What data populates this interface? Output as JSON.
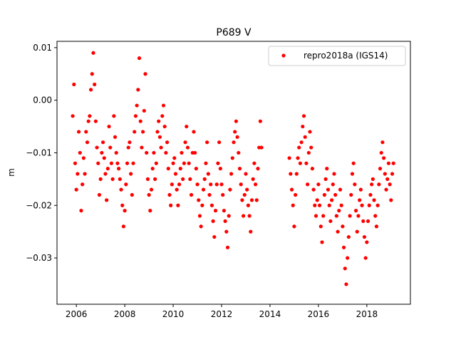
{
  "chart_data": {
    "type": "scatter",
    "title": "P689 V",
    "xlabel": "",
    "ylabel": "m",
    "xlim": [
      2005.2,
      2019.8
    ],
    "ylim": [
      -0.0388,
      0.0112
    ],
    "x_ticks": [
      2006,
      2008,
      2010,
      2012,
      2014,
      2016,
      2018
    ],
    "x_tick_labels": [
      "2006",
      "2008",
      "2010",
      "2012",
      "2014",
      "2016",
      "2018"
    ],
    "y_ticks": [
      0.01,
      0.0,
      -0.01,
      -0.02,
      -0.03
    ],
    "y_tick_labels": [
      "0.01",
      "0.00",
      "−0.01",
      "−0.02",
      "−0.03"
    ],
    "grid": false,
    "legend_position": "top-right",
    "marker_color": "#ff0000",
    "series": [
      {
        "name": "repro2018a (IGS14)",
        "marker": "circle",
        "color": "#ff0000",
        "x": [
          2005.85,
          2005.9,
          2005.95,
          2006.0,
          2006.05,
          2006.1,
          2006.15,
          2006.2,
          2006.25,
          2006.3,
          2006.35,
          2006.4,
          2006.45,
          2006.5,
          2006.55,
          2006.6,
          2006.65,
          2006.7,
          2006.75,
          2006.8,
          2006.85,
          2006.9,
          2006.95,
          2007.0,
          2007.05,
          2007.1,
          2007.15,
          2007.2,
          2007.25,
          2007.3,
          2007.35,
          2007.4,
          2007.45,
          2007.5,
          2007.55,
          2007.6,
          2007.65,
          2007.7,
          2007.75,
          2007.8,
          2007.85,
          2007.9,
          2007.95,
          2008.0,
          2008.05,
          2008.1,
          2008.15,
          2008.2,
          2008.25,
          2008.3,
          2008.35,
          2008.4,
          2008.45,
          2008.5,
          2008.55,
          2008.6,
          2008.65,
          2008.7,
          2008.75,
          2008.8,
          2008.85,
          2008.9,
          2008.95,
          2009.0,
          2009.05,
          2009.1,
          2009.15,
          2009.2,
          2009.25,
          2009.3,
          2009.35,
          2009.4,
          2009.45,
          2009.5,
          2009.55,
          2009.6,
          2009.65,
          2009.7,
          2009.75,
          2009.8,
          2009.85,
          2009.9,
          2009.95,
          2010.0,
          2010.05,
          2010.1,
          2010.15,
          2010.2,
          2010.25,
          2010.3,
          2010.35,
          2010.4,
          2010.45,
          2010.5,
          2010.55,
          2010.6,
          2010.65,
          2010.7,
          2010.75,
          2010.8,
          2010.85,
          2010.9,
          2010.95,
          2011.0,
          2011.05,
          2011.1,
          2011.15,
          2011.2,
          2011.25,
          2011.3,
          2011.35,
          2011.4,
          2011.45,
          2011.5,
          2011.55,
          2011.6,
          2011.65,
          2011.7,
          2011.75,
          2011.8,
          2011.85,
          2011.9,
          2011.95,
          2012.0,
          2012.05,
          2012.1,
          2012.15,
          2012.2,
          2012.25,
          2012.3,
          2012.35,
          2012.4,
          2012.45,
          2012.5,
          2012.55,
          2012.6,
          2012.65,
          2012.7,
          2012.75,
          2012.8,
          2012.85,
          2012.9,
          2012.95,
          2013.0,
          2013.05,
          2013.1,
          2013.15,
          2013.2,
          2013.25,
          2013.3,
          2013.35,
          2013.4,
          2013.45,
          2013.5,
          2013.55,
          2013.6,
          2013.65,
          2014.8,
          2014.85,
          2014.9,
          2014.95,
          2015.0,
          2015.05,
          2015.1,
          2015.15,
          2015.2,
          2015.25,
          2015.3,
          2015.35,
          2015.4,
          2015.45,
          2015.5,
          2015.55,
          2015.6,
          2015.65,
          2015.7,
          2015.75,
          2015.8,
          2015.85,
          2015.9,
          2015.95,
          2016.0,
          2016.05,
          2016.1,
          2016.15,
          2016.2,
          2016.25,
          2016.3,
          2016.35,
          2016.4,
          2016.45,
          2016.5,
          2016.55,
          2016.6,
          2016.65,
          2016.7,
          2016.75,
          2016.8,
          2016.85,
          2016.9,
          2016.95,
          2017.0,
          2017.05,
          2017.1,
          2017.15,
          2017.2,
          2017.25,
          2017.3,
          2017.35,
          2017.4,
          2017.45,
          2017.5,
          2017.55,
          2017.6,
          2017.65,
          2017.7,
          2017.75,
          2017.8,
          2017.85,
          2017.9,
          2017.95,
          2018.0,
          2018.05,
          2018.1,
          2018.15,
          2018.2,
          2018.25,
          2018.3,
          2018.35,
          2018.4,
          2018.45,
          2018.5,
          2018.55,
          2018.6,
          2018.65,
          2018.7,
          2018.75,
          2018.8,
          2018.85,
          2018.9,
          2018.95,
          2019.0,
          2019.05,
          2019.1
        ],
        "y": [
          -0.003,
          0.003,
          -0.012,
          -0.017,
          -0.014,
          -0.006,
          -0.01,
          -0.021,
          -0.016,
          -0.011,
          -0.014,
          -0.006,
          -0.008,
          -0.004,
          -0.003,
          0.002,
          0.005,
          0.009,
          0.003,
          -0.004,
          -0.009,
          -0.012,
          -0.018,
          -0.015,
          -0.01,
          -0.008,
          -0.011,
          -0.014,
          -0.019,
          -0.013,
          -0.005,
          -0.009,
          -0.012,
          -0.015,
          -0.003,
          -0.007,
          -0.01,
          -0.012,
          -0.013,
          -0.015,
          -0.017,
          -0.02,
          -0.024,
          -0.021,
          -0.016,
          -0.012,
          -0.009,
          -0.008,
          -0.014,
          -0.018,
          -0.012,
          -0.006,
          -0.003,
          -0.001,
          0.002,
          0.008,
          -0.004,
          -0.009,
          -0.006,
          -0.002,
          0.005,
          -0.01,
          -0.015,
          -0.018,
          -0.021,
          -0.017,
          -0.013,
          -0.01,
          -0.015,
          -0.012,
          -0.006,
          -0.004,
          -0.007,
          -0.009,
          -0.003,
          -0.001,
          -0.005,
          -0.01,
          -0.008,
          -0.013,
          -0.018,
          -0.02,
          -0.016,
          -0.012,
          -0.011,
          -0.014,
          -0.017,
          -0.02,
          -0.016,
          -0.013,
          -0.01,
          -0.015,
          -0.012,
          -0.008,
          -0.005,
          -0.009,
          -0.012,
          -0.015,
          -0.018,
          -0.01,
          -0.006,
          -0.01,
          -0.013,
          -0.016,
          -0.019,
          -0.022,
          -0.024,
          -0.02,
          -0.017,
          -0.015,
          -0.012,
          -0.008,
          -0.014,
          -0.018,
          -0.016,
          -0.02,
          -0.023,
          -0.026,
          -0.021,
          -0.016,
          -0.012,
          -0.008,
          -0.013,
          -0.016,
          -0.018,
          -0.021,
          -0.023,
          -0.025,
          -0.028,
          -0.022,
          -0.017,
          -0.014,
          -0.011,
          -0.008,
          -0.006,
          -0.004,
          -0.007,
          -0.01,
          -0.013,
          -0.016,
          -0.019,
          -0.022,
          -0.018,
          -0.014,
          -0.017,
          -0.02,
          -0.022,
          -0.025,
          -0.019,
          -0.015,
          -0.012,
          -0.016,
          -0.019,
          -0.013,
          -0.009,
          -0.004,
          -0.009,
          -0.011,
          -0.014,
          -0.017,
          -0.02,
          -0.024,
          -0.018,
          -0.014,
          -0.011,
          -0.009,
          -0.012,
          -0.008,
          -0.005,
          -0.003,
          -0.007,
          -0.012,
          -0.016,
          -0.01,
          -0.006,
          -0.009,
          -0.013,
          -0.017,
          -0.02,
          -0.022,
          -0.019,
          -0.016,
          -0.02,
          -0.024,
          -0.027,
          -0.022,
          -0.018,
          -0.015,
          -0.013,
          -0.017,
          -0.02,
          -0.023,
          -0.019,
          -0.016,
          -0.014,
          -0.018,
          -0.022,
          -0.025,
          -0.021,
          -0.017,
          -0.02,
          -0.024,
          -0.028,
          -0.032,
          -0.035,
          -0.03,
          -0.026,
          -0.022,
          -0.018,
          -0.014,
          -0.012,
          -0.016,
          -0.021,
          -0.025,
          -0.022,
          -0.019,
          -0.017,
          -0.02,
          -0.023,
          -0.026,
          -0.03,
          -0.027,
          -0.023,
          -0.02,
          -0.018,
          -0.016,
          -0.015,
          -0.019,
          -0.022,
          -0.024,
          -0.02,
          -0.016,
          -0.013,
          -0.01,
          -0.008,
          -0.011,
          -0.014,
          -0.017,
          -0.015,
          -0.012,
          -0.016,
          -0.019,
          -0.014,
          -0.012
        ]
      }
    ]
  }
}
